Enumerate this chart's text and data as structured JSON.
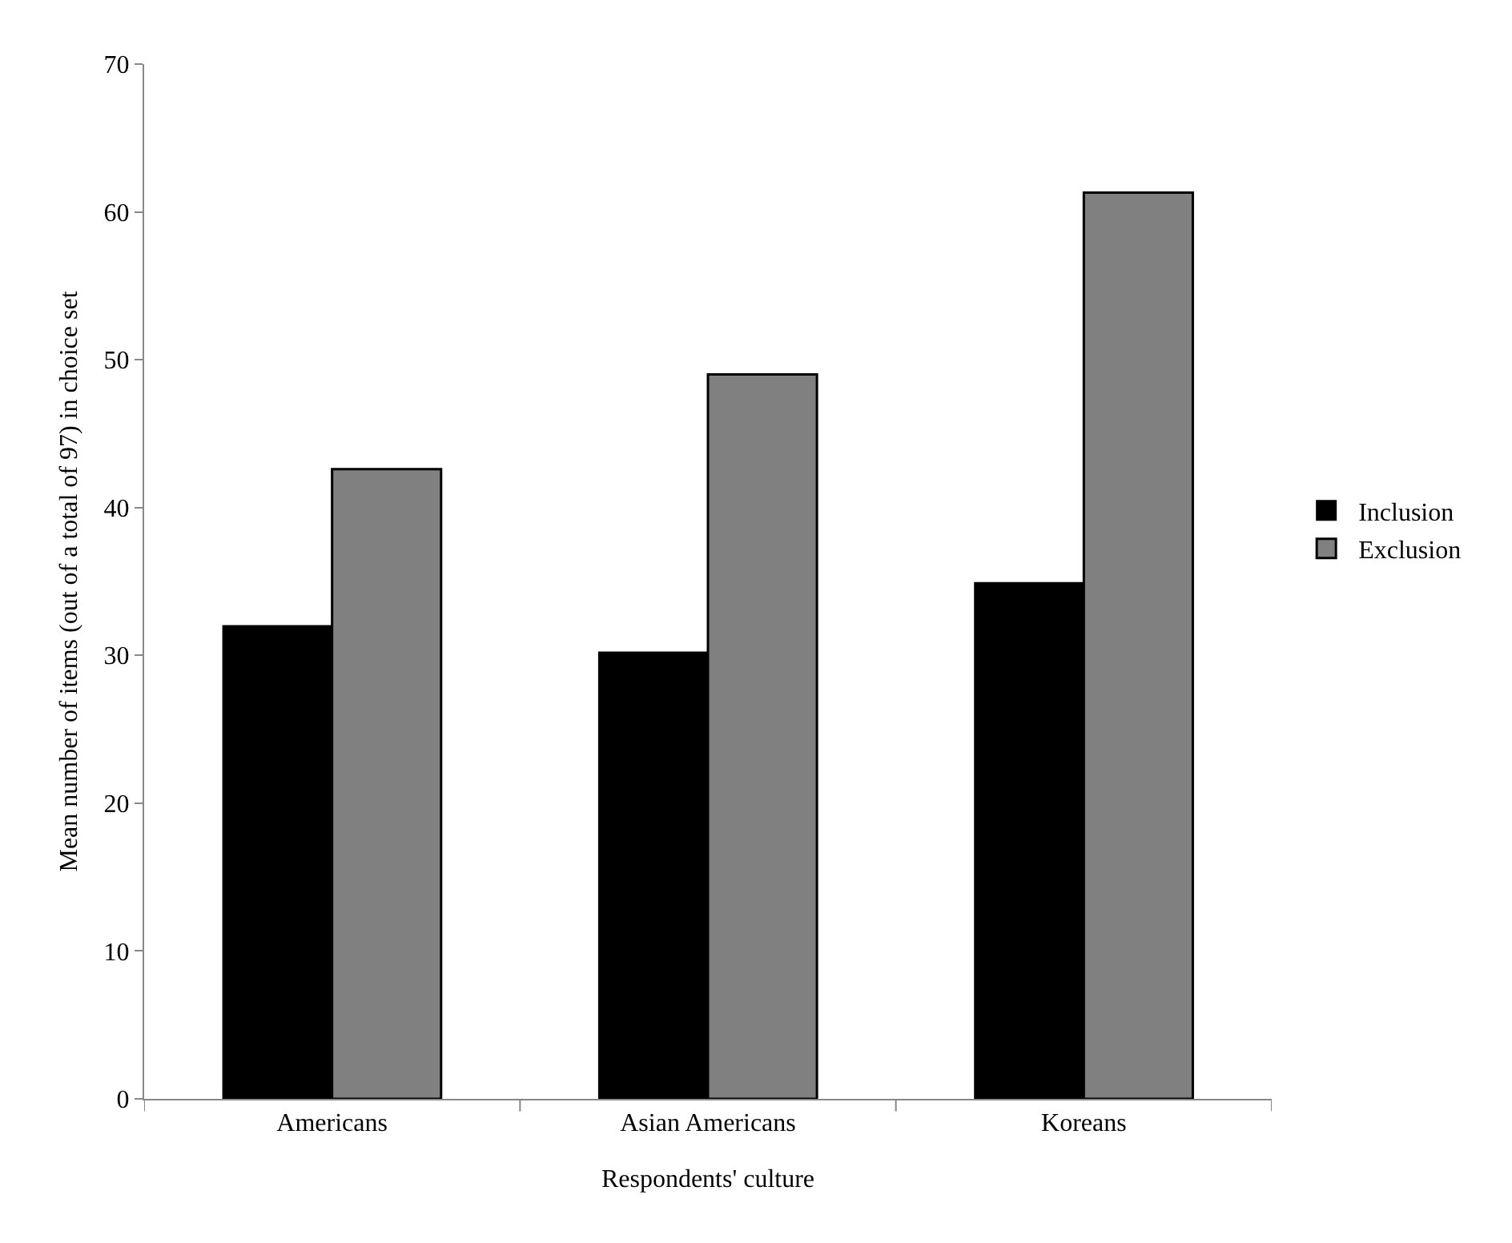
{
  "chart_data": {
    "type": "bar",
    "xlabel": "Respondents' culture",
    "ylabel": "Mean number of items (out of a total of 97) in choice set",
    "categories": [
      "Americans",
      "Asian Americans",
      "Koreans"
    ],
    "series": [
      {
        "name": "Inclusion",
        "color": "#000000",
        "values": [
          32.0,
          30.2,
          34.9
        ]
      },
      {
        "name": "Exclusion",
        "color": "#808080",
        "values": [
          42.6,
          49.0,
          61.3
        ]
      }
    ],
    "ylim": [
      0,
      70
    ],
    "yticks": [
      0,
      10,
      20,
      30,
      40,
      50,
      60,
      70
    ],
    "grid": false,
    "legend": "right"
  }
}
